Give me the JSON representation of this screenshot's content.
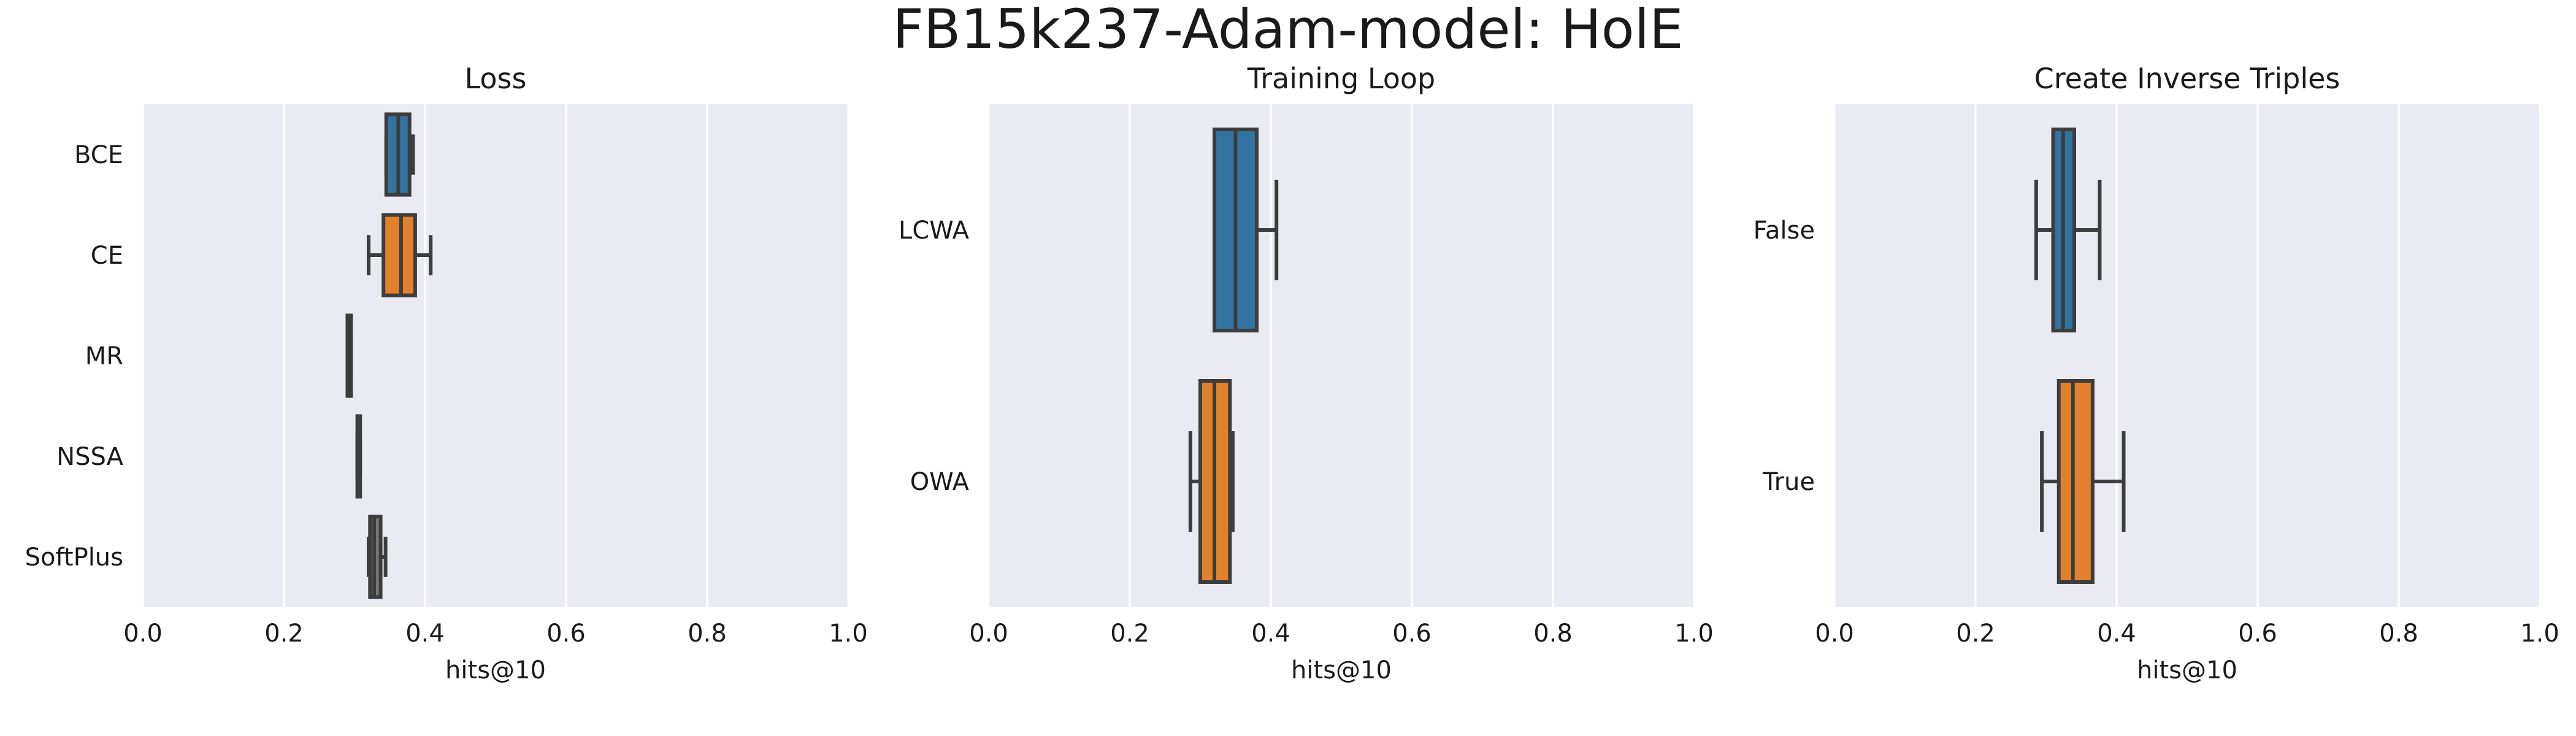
{
  "title": "FB15k237-Adam-model: HolE",
  "colors": {
    "blue": "#3274a1",
    "orange": "#e1812c",
    "gray": "#7a7a7a",
    "background": "#eaeaf2",
    "line": "#3d3d3d"
  },
  "chart_data": [
    {
      "type": "boxplot",
      "orientation": "horizontal",
      "title": "Loss",
      "xlabel": "hits@10",
      "ylabel": "",
      "xlim": [
        0.0,
        1.0
      ],
      "xticks": [
        0.0,
        0.2,
        0.4,
        0.6,
        0.8,
        1.0
      ],
      "grid": true,
      "categories": [
        "BCE",
        "CE",
        "MR",
        "NSSA",
        "SoftPlus"
      ],
      "boxes": [
        {
          "category": "BCE",
          "whisker_low": 0.345,
          "q1": 0.345,
          "median": 0.362,
          "q3": 0.378,
          "whisker_high": 0.383,
          "color": "#3274a1"
        },
        {
          "category": "CE",
          "whisker_low": 0.32,
          "q1": 0.341,
          "median": 0.366,
          "q3": 0.386,
          "whisker_high": 0.408,
          "color": "#e1812c"
        },
        {
          "category": "MR",
          "whisker_low": 0.29,
          "q1": 0.29,
          "median": 0.292,
          "q3": 0.295,
          "whisker_high": 0.295,
          "color": "#7a7a7a"
        },
        {
          "category": "NSSA",
          "whisker_low": 0.304,
          "q1": 0.304,
          "median": 0.306,
          "q3": 0.308,
          "whisker_high": 0.308,
          "color": "#7a7a7a"
        },
        {
          "category": "SoftPlus",
          "whisker_low": 0.32,
          "q1": 0.322,
          "median": 0.328,
          "q3": 0.337,
          "whisker_high": 0.344,
          "color": "#7a7a7a"
        }
      ]
    },
    {
      "type": "boxplot",
      "orientation": "horizontal",
      "title": "Training Loop",
      "xlabel": "hits@10",
      "ylabel": "",
      "xlim": [
        0.0,
        1.0
      ],
      "xticks": [
        0.0,
        0.2,
        0.4,
        0.6,
        0.8,
        1.0
      ],
      "grid": true,
      "categories": [
        "LCWA",
        "OWA"
      ],
      "boxes": [
        {
          "category": "LCWA",
          "whisker_low": 0.32,
          "q1": 0.32,
          "median": 0.35,
          "q3": 0.38,
          "whisker_high": 0.408,
          "color": "#3274a1"
        },
        {
          "category": "OWA",
          "whisker_low": 0.286,
          "q1": 0.3,
          "median": 0.32,
          "q3": 0.342,
          "whisker_high": 0.346,
          "color": "#e1812c"
        }
      ]
    },
    {
      "type": "boxplot",
      "orientation": "horizontal",
      "title": "Create Inverse Triples",
      "xlabel": "hits@10",
      "ylabel": "",
      "xlim": [
        0.0,
        1.0
      ],
      "xticks": [
        0.0,
        0.2,
        0.4,
        0.6,
        0.8,
        1.0
      ],
      "grid": true,
      "categories": [
        "False",
        "True"
      ],
      "boxes": [
        {
          "category": "False",
          "whisker_low": 0.286,
          "q1": 0.31,
          "median": 0.324,
          "q3": 0.34,
          "whisker_high": 0.376,
          "color": "#3274a1"
        },
        {
          "category": "True",
          "whisker_low": 0.294,
          "q1": 0.318,
          "median": 0.338,
          "q3": 0.366,
          "whisker_high": 0.41,
          "color": "#e1812c"
        }
      ]
    }
  ]
}
